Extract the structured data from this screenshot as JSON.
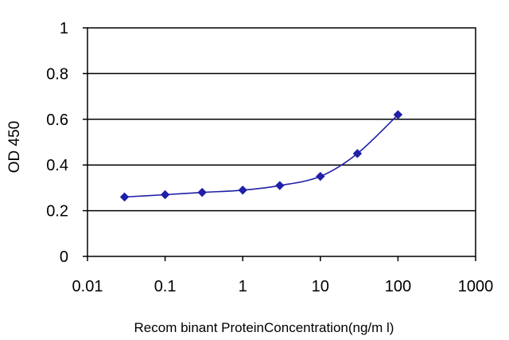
{
  "chart_data": {
    "type": "line",
    "title": "",
    "xlabel": "Recom binant ProteinConcentration(ng/m l)",
    "ylabel": "OD 450",
    "x_scale": "log",
    "xlim": [
      0.01,
      1000
    ],
    "ylim": [
      0,
      1
    ],
    "x_ticks": [
      "0.01",
      "0.1",
      "1",
      "10",
      "100",
      "1000"
    ],
    "y_ticks": [
      "0",
      "0.2",
      "0.4",
      "0.6",
      "0.8",
      "1"
    ],
    "grid": "horizontal",
    "legend": "none",
    "series": [
      {
        "x": [
          0.03,
          0.1,
          0.3,
          1,
          3,
          10,
          30,
          100
        ],
        "y": [
          0.26,
          0.27,
          0.28,
          0.29,
          0.31,
          0.35,
          0.45,
          0.62
        ]
      }
    ],
    "colors": {
      "series": "#1f1fa8",
      "grid": "#000000",
      "axis": "#000000",
      "background": "#ffffff"
    }
  }
}
